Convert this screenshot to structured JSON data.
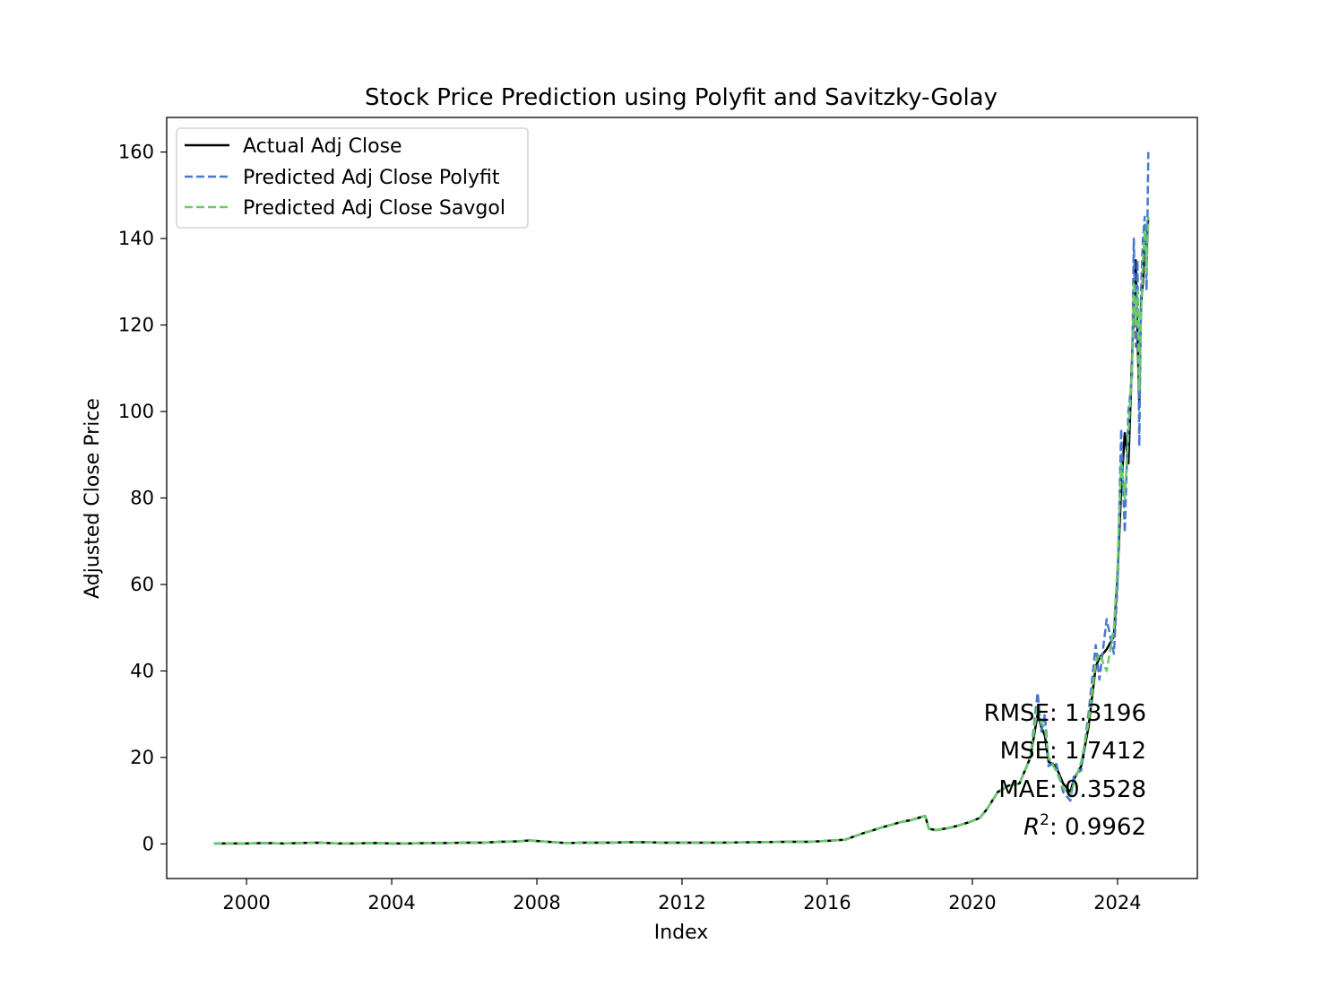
{
  "chart_data": {
    "type": "line",
    "title": "Stock Price Prediction using Polyfit and Savitzky-Golay",
    "xlabel": "Index",
    "ylabel": "Adjusted Close Price",
    "xlim": [
      1997.8,
      2026.2
    ],
    "ylim": [
      -8,
      168
    ],
    "x_ticks": [
      2000,
      2004,
      2008,
      2012,
      2016,
      2020,
      2024
    ],
    "x_tick_labels": [
      "2000",
      "2004",
      "2008",
      "2012",
      "2016",
      "2020",
      "2024"
    ],
    "y_ticks": [
      0,
      20,
      40,
      60,
      80,
      100,
      120,
      140,
      160
    ],
    "y_tick_labels": [
      "0",
      "20",
      "40",
      "60",
      "80",
      "100",
      "120",
      "140",
      "160"
    ],
    "grid": false,
    "legend_position": "upper-left",
    "x": [
      1999.1,
      2000.0,
      2000.5,
      2001.0,
      2001.5,
      2002.0,
      2002.5,
      2003.0,
      2003.5,
      2004.0,
      2004.5,
      2005.0,
      2005.5,
      2006.0,
      2006.5,
      2007.0,
      2007.5,
      2007.8,
      2008.3,
      2008.8,
      2009.3,
      2010.0,
      2010.5,
      2011.0,
      2011.5,
      2012.0,
      2013.0,
      2014.0,
      2015.0,
      2015.5,
      2016.0,
      2016.5,
      2017.0,
      2017.2,
      2017.5,
      2017.8,
      2018.0,
      2018.3,
      2018.5,
      2018.7,
      2018.8,
      2019.0,
      2019.3,
      2019.6,
      2019.9,
      2020.2,
      2020.4,
      2020.7,
      2021.0,
      2021.3,
      2021.6,
      2021.8,
      2021.9,
      2022.0,
      2022.1,
      2022.3,
      2022.5,
      2022.7,
      2022.8,
      2023.0,
      2023.2,
      2023.4,
      2023.5,
      2023.7,
      2023.9,
      2024.0,
      2024.1,
      2024.2,
      2024.3,
      2024.4,
      2024.45,
      2024.5,
      2024.55,
      2024.6,
      2024.65,
      2024.7,
      2024.75,
      2024.8,
      2024.85
    ],
    "series": [
      {
        "name": "Actual Adj Close",
        "color": "#000000",
        "style": "solid",
        "values": [
          0.1,
          0.1,
          0.2,
          0.1,
          0.2,
          0.3,
          0.1,
          0.1,
          0.2,
          0.1,
          0.1,
          0.2,
          0.2,
          0.3,
          0.3,
          0.5,
          0.6,
          0.8,
          0.5,
          0.2,
          0.3,
          0.3,
          0.4,
          0.4,
          0.3,
          0.3,
          0.3,
          0.4,
          0.5,
          0.5,
          0.7,
          1.0,
          2.5,
          3.0,
          3.8,
          4.5,
          5.0,
          5.5,
          6.0,
          6.5,
          3.5,
          3.2,
          3.6,
          4.2,
          5.0,
          6.0,
          8.0,
          12.0,
          13.5,
          14.0,
          20.0,
          30.0,
          27.0,
          25.0,
          19.0,
          18.0,
          14.0,
          12.0,
          15.0,
          18.0,
          27.0,
          41.0,
          43.0,
          45.0,
          48.0,
          62.0,
          82.0,
          95.0,
          88.0,
          112.0,
          125.0,
          135.0,
          118.0,
          102.0,
          125.0,
          130.0,
          140.0,
          138.0,
          145.0
        ]
      },
      {
        "name": "Predicted Adj Close Polyfit",
        "color": "#4878cf",
        "style": "dashed",
        "values": [
          0.1,
          0.1,
          0.2,
          0.1,
          0.2,
          0.3,
          0.1,
          0.1,
          0.2,
          0.1,
          0.1,
          0.2,
          0.2,
          0.3,
          0.3,
          0.5,
          0.6,
          0.8,
          0.5,
          0.2,
          0.3,
          0.3,
          0.4,
          0.4,
          0.3,
          0.3,
          0.3,
          0.4,
          0.5,
          0.5,
          0.7,
          1.0,
          2.5,
          3.0,
          3.8,
          4.5,
          5.0,
          5.5,
          6.0,
          6.5,
          3.5,
          3.2,
          3.6,
          4.2,
          5.0,
          6.0,
          8.0,
          12.0,
          13.5,
          14.0,
          20.0,
          35.0,
          26.0,
          30.0,
          18.0,
          19.0,
          12.0,
          10.0,
          16.0,
          17.0,
          30.0,
          46.0,
          38.0,
          52.0,
          44.0,
          60.0,
          96.0,
          72.0,
          100.0,
          108.0,
          140.0,
          115.0,
          135.0,
          92.0,
          128.0,
          140.0,
          145.0,
          128.0,
          160.0
        ]
      },
      {
        "name": "Predicted Adj Close Savgol",
        "color": "#6acc65",
        "style": "dashed",
        "values": [
          0.1,
          0.1,
          0.2,
          0.1,
          0.2,
          0.3,
          0.1,
          0.1,
          0.2,
          0.1,
          0.1,
          0.2,
          0.2,
          0.3,
          0.3,
          0.5,
          0.6,
          0.8,
          0.5,
          0.2,
          0.3,
          0.3,
          0.4,
          0.4,
          0.3,
          0.3,
          0.3,
          0.4,
          0.5,
          0.5,
          0.7,
          1.0,
          2.5,
          3.0,
          3.8,
          4.5,
          5.0,
          5.5,
          6.0,
          6.5,
          3.5,
          3.2,
          3.6,
          4.2,
          5.0,
          6.0,
          8.0,
          12.0,
          13.5,
          14.0,
          20.0,
          32.0,
          28.0,
          27.0,
          20.0,
          17.0,
          13.0,
          11.0,
          14.0,
          19.0,
          28.0,
          42.0,
          44.0,
          40.0,
          50.0,
          64.0,
          88.0,
          80.0,
          95.0,
          110.0,
          130.0,
          120.0,
          128.0,
          105.0,
          122.0,
          135.0,
          142.0,
          132.0,
          145.0
        ]
      }
    ],
    "annotations": {
      "rmse": "RMSE: 1.3196",
      "mse": "MSE: 1.7412",
      "mae": "MAE: 0.3528",
      "r2_symbol": "R",
      "r2_exponent": "2",
      "r2_value": ": 0.9962"
    }
  }
}
